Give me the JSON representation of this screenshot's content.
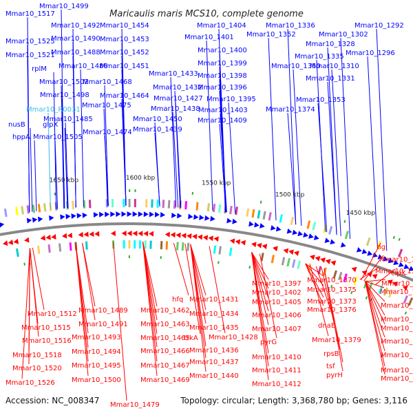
{
  "title": "Maricaulis maris MCS10, complete genome",
  "footer": {
    "accession": "Accession: NC_008347",
    "summary": "Topology: circular; Length: 3,368,780 bp; Genes: 3,116"
  },
  "colors": {
    "forward_strand": "#0000ff",
    "reverse_strand": "#ff0000",
    "rna_label": "#33bbee",
    "backbone": "#888888"
  },
  "kbp_ticks": [
    "1450 kbp",
    "1500 kbp",
    "1550 kbp",
    "1600 kbp",
    "1650 kbp"
  ],
  "genes_forward": [
    "Mmar10_1499",
    "Mmar10_1517",
    "Mmar10_1525",
    "Mmar10_1521",
    "rplM",
    "Mmar10_R0031",
    "nusB",
    "hppA",
    "glpX",
    "Mmar10_1505",
    "Mmar10_1492",
    "Mmar10_1490",
    "Mmar10_1488",
    "Mmar10_1486",
    "Mmar10_1502",
    "Mmar10_1498",
    "Mmar10_1485",
    "Mmar10_1475",
    "Mmar10_1474",
    "Mmar10_1454",
    "Mmar10_1453",
    "Mmar10_1452",
    "Mmar10_1451",
    "Mmar10_1468",
    "Mmar10_1464",
    "Mmar10_1450",
    "Mmar10_1439",
    "Mmar10_1438",
    "Mmar10_1433",
    "Mmar10_1432",
    "Mmar10_1427",
    "Mmar10_1404",
    "Mmar10_1401",
    "Mmar10_1400",
    "Mmar10_1399",
    "Mmar10_1398",
    "Mmar10_1396",
    "Mmar10_1395",
    "Mmar10_1403",
    "Mmar10_1409",
    "Mmar10_1336",
    "Mmar10_1352",
    "Mmar10_1328",
    "Mmar10_1335",
    "Mmar10_1350",
    "Mmar10_1331",
    "Mmar10_1353",
    "Mmar10_1374",
    "Mmar10_1292",
    "Mmar10_1302",
    "Mmar10_1296",
    "Mmar10_1310"
  ],
  "genes_reverse": [
    "tig",
    "Mmar10_1338",
    "Mmar10_1357",
    "clpX",
    "Mmar10_1344",
    "Mmar10_1347",
    "Mmar10_1348",
    "Mmar10_1351",
    "Mmar10_1354",
    "Mmar10_1355",
    "Mmar10_1358",
    "Mmar10_1360",
    "Mmar10_1362",
    "Mmar10_1370",
    "Mmar10_1375",
    "Mmar10_1373",
    "Mmar10_1376",
    "dnaE",
    "Mmar10_1379",
    "rpsB",
    "tsf",
    "pyrH",
    "Mmar10_1397",
    "Mmar10_1402",
    "Mmar10_1405",
    "Mmar10_1406",
    "Mmar10_1407",
    "pyrG",
    "Mmar10_1410",
    "Mmar10_1411",
    "Mmar10_1412",
    "hfq",
    "Mmar10_1431",
    "Mmar10_1434",
    "Mmar10_1435",
    "Mmar10_1428",
    "trkA",
    "Mmar10_1436",
    "Mmar10_1437",
    "Mmar10_1440",
    "Mmar10_1462",
    "Mmar10_1463",
    "Mmar10_1465",
    "Mmar10_1466",
    "Mmar10_1467",
    "Mmar10_1469",
    "Mmar10_1479",
    "Mmar10_1489",
    "Mmar10_1491",
    "Mmar10_1493",
    "Mmar10_1494",
    "Mmar10_1495",
    "Mmar10_1500",
    "Mmar10_1512",
    "Mmar10_1515",
    "Mmar10_1516",
    "Mmar10_1518",
    "Mmar10_1520",
    "Mmar10_1526"
  ]
}
